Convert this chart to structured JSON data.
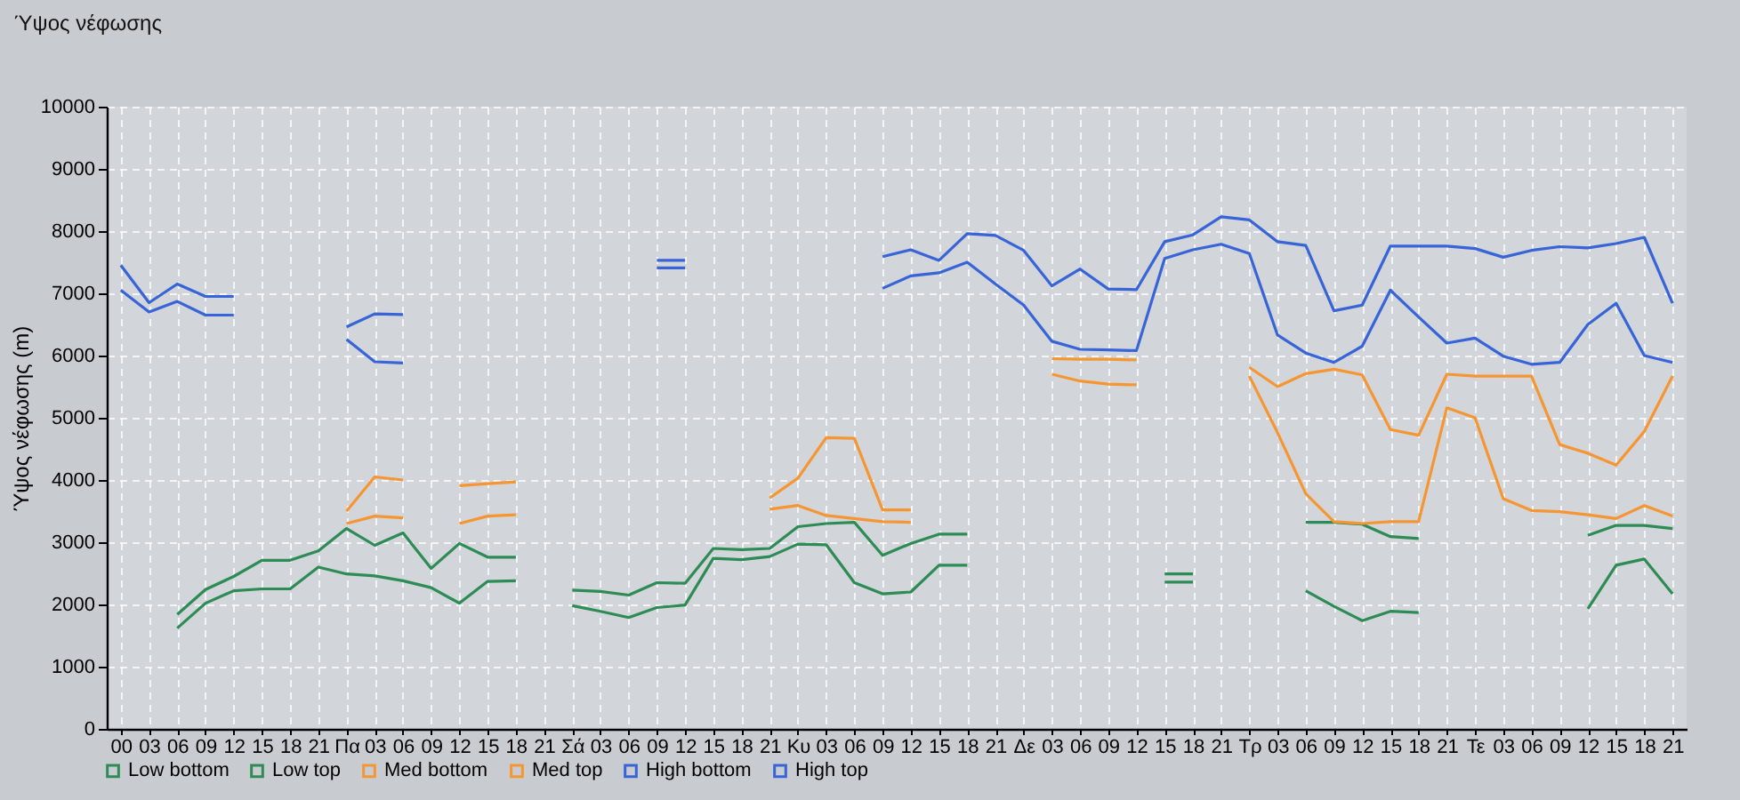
{
  "chart_data": {
    "type": "line",
    "title": "Ύψος νέφωσης",
    "ylabel": "Ύψος νέφωσης (m)",
    "categories": [
      "00",
      "03",
      "06",
      "09",
      "12",
      "15",
      "18",
      "21",
      "Πα",
      "03",
      "06",
      "09",
      "12",
      "15",
      "18",
      "21",
      "Σά",
      "03",
      "06",
      "09",
      "12",
      "15",
      "18",
      "21",
      "Κυ",
      "03",
      "06",
      "09",
      "12",
      "15",
      "18",
      "21",
      "Δε",
      "03",
      "06",
      "09",
      "12",
      "15",
      "18",
      "21",
      "Τρ",
      "03",
      "06",
      "09",
      "12",
      "15",
      "18",
      "21",
      "Τε",
      "03",
      "06",
      "09",
      "12",
      "15",
      "18",
      "21"
    ],
    "series": [
      {
        "name": "Low bottom",
        "color": "#2d8c55",
        "values": [
          null,
          null,
          1620,
          2020,
          2220,
          2250,
          2250,
          2600,
          2490,
          2460,
          2380,
          2270,
          2020,
          2370,
          2380,
          null,
          1980,
          1890,
          1790,
          1950,
          1990,
          2740,
          2720,
          2770,
          2970,
          2960,
          2350,
          2170,
          2200,
          2630,
          2630,
          null,
          null,
          null,
          null,
          null,
          null,
          2360,
          2360,
          null,
          null,
          null,
          2220,
          1970,
          1740,
          1890,
          1870,
          null,
          null,
          null,
          null,
          null,
          1930,
          2630,
          2730,
          2170
        ]
      },
      {
        "name": "Low top",
        "color": "#2d8c55",
        "values": [
          null,
          null,
          1840,
          2240,
          2450,
          2710,
          2710,
          2860,
          3220,
          2950,
          3150,
          2580,
          2980,
          2760,
          2760,
          null,
          2230,
          2210,
          2150,
          2350,
          2340,
          2900,
          2880,
          2900,
          3250,
          3300,
          3320,
          2790,
          2980,
          3130,
          3130,
          null,
          null,
          null,
          null,
          null,
          null,
          2490,
          2490,
          null,
          null,
          null,
          3320,
          3320,
          3290,
          3090,
          3060,
          null,
          null,
          null,
          null,
          null,
          3110,
          3270,
          3270,
          3220
        ]
      },
      {
        "name": "Med bottom",
        "color": "#f59632",
        "values": [
          null,
          null,
          null,
          null,
          null,
          null,
          null,
          null,
          3300,
          3420,
          3390,
          null,
          3300,
          3420,
          3440,
          null,
          null,
          null,
          null,
          null,
          null,
          null,
          null,
          3530,
          3590,
          3430,
          3380,
          3330,
          3320,
          null,
          null,
          null,
          null,
          5700,
          5590,
          5540,
          5530,
          null,
          null,
          null,
          5670,
          4760,
          3780,
          3330,
          3300,
          3330,
          3330,
          5160,
          5000,
          3700,
          3510,
          3490,
          3440,
          3380,
          3590,
          3420
        ]
      },
      {
        "name": "Med top",
        "color": "#f59632",
        "values": [
          null,
          null,
          null,
          null,
          null,
          null,
          null,
          null,
          3500,
          4050,
          4000,
          null,
          3910,
          3940,
          3970,
          null,
          null,
          null,
          null,
          null,
          null,
          null,
          null,
          3710,
          4030,
          4680,
          4670,
          3520,
          3520,
          null,
          null,
          null,
          null,
          5950,
          5940,
          5940,
          5930,
          null,
          null,
          null,
          5810,
          5500,
          5710,
          5780,
          5690,
          4810,
          4720,
          5700,
          5670,
          5670,
          5670,
          4570,
          4430,
          4240,
          4780,
          5670
        ]
      },
      {
        "name": "High bottom",
        "color": "#3764d7",
        "values": [
          7050,
          6700,
          6870,
          6650,
          6650,
          null,
          null,
          null,
          6260,
          5900,
          5880,
          null,
          null,
          null,
          null,
          null,
          null,
          null,
          null,
          7410,
          7410,
          null,
          null,
          null,
          null,
          null,
          null,
          7080,
          7280,
          7330,
          7500,
          7150,
          6810,
          6230,
          6100,
          6090,
          6080,
          7560,
          7700,
          7790,
          7640,
          6330,
          6040,
          5890,
          6150,
          7050,
          6620,
          6200,
          6280,
          5990,
          5860,
          5890,
          6500,
          6840,
          6000,
          5890
        ]
      },
      {
        "name": "High top",
        "color": "#3764d7",
        "values": [
          7450,
          6850,
          7150,
          6950,
          6950,
          null,
          null,
          null,
          6460,
          6670,
          6660,
          null,
          null,
          null,
          null,
          null,
          null,
          null,
          null,
          7530,
          7530,
          null,
          null,
          null,
          null,
          null,
          null,
          7590,
          7700,
          7530,
          7960,
          7930,
          7690,
          7120,
          7390,
          7070,
          7060,
          7830,
          7940,
          8230,
          8180,
          7830,
          7770,
          6720,
          6810,
          7760,
          7760,
          7760,
          7720,
          7580,
          7690,
          7750,
          7730,
          7800,
          7900,
          6840
        ]
      }
    ],
    "ylim": [
      0,
      10000
    ],
    "yticks": [
      0,
      1000,
      2000,
      3000,
      4000,
      5000,
      6000,
      7000,
      8000,
      9000,
      10000
    ],
    "grid": true,
    "legend": "bottom",
    "line_style": "solid"
  }
}
